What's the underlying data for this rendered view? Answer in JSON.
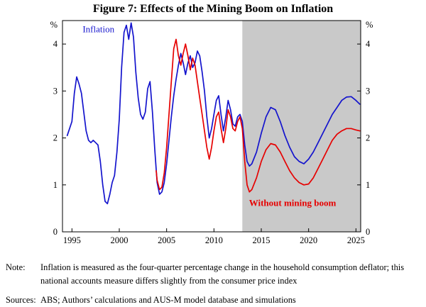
{
  "title": "Figure 7: Effects of the Mining Boom on Inflation",
  "notes": [
    {
      "label": "Note:",
      "text": "Inflation is measured as the four-quarter percentage change in the household consumption deflator; this national accounts measure differs slightly from the consumer price index"
    },
    {
      "label": "Sources:",
      "text": "ABS; Authors’ calculations and AUS-M model database and simulations"
    }
  ],
  "chart_data": {
    "type": "line",
    "title": "Figure 7: Effects of the Mining Boom on Inflation",
    "unit_label": "%",
    "xlabel": "",
    "ylabel": "%",
    "xlim": [
      1994,
      2025.5
    ],
    "ylim": [
      0,
      4.5
    ],
    "xticks": [
      1995,
      2000,
      2005,
      2010,
      2015,
      2020,
      2025
    ],
    "yticks": [
      0,
      1,
      2,
      3,
      4
    ],
    "grid": false,
    "legend_position": "in-plot-labels",
    "shaded_region": {
      "from": 2013,
      "to": 2025.5,
      "color": "#c9c9c9",
      "meaning": "simulation period"
    },
    "series": [
      {
        "name": "Inflation",
        "color": "#1414cd",
        "points": [
          [
            1994.5,
            2.05
          ],
          [
            1994.75,
            2.2
          ],
          [
            1995,
            2.35
          ],
          [
            1995.25,
            2.95
          ],
          [
            1995.5,
            3.3
          ],
          [
            1995.75,
            3.15
          ],
          [
            1996,
            2.95
          ],
          [
            1996.25,
            2.55
          ],
          [
            1996.5,
            2.15
          ],
          [
            1996.75,
            1.95
          ],
          [
            1997,
            1.9
          ],
          [
            1997.25,
            1.95
          ],
          [
            1997.5,
            1.9
          ],
          [
            1997.75,
            1.85
          ],
          [
            1998,
            1.5
          ],
          [
            1998.25,
            1.0
          ],
          [
            1998.5,
            0.65
          ],
          [
            1998.75,
            0.6
          ],
          [
            1999,
            0.8
          ],
          [
            1999.25,
            1.05
          ],
          [
            1999.5,
            1.2
          ],
          [
            1999.75,
            1.7
          ],
          [
            2000,
            2.4
          ],
          [
            2000.25,
            3.5
          ],
          [
            2000.5,
            4.25
          ],
          [
            2000.75,
            4.4
          ],
          [
            2001,
            4.1
          ],
          [
            2001.25,
            4.45
          ],
          [
            2001.5,
            4.15
          ],
          [
            2001.75,
            3.4
          ],
          [
            2002,
            2.85
          ],
          [
            2002.25,
            2.5
          ],
          [
            2002.5,
            2.4
          ],
          [
            2002.75,
            2.55
          ],
          [
            2003,
            3.05
          ],
          [
            2003.25,
            3.2
          ],
          [
            2003.5,
            2.55
          ],
          [
            2003.75,
            1.75
          ],
          [
            2004,
            1.05
          ],
          [
            2004.25,
            0.8
          ],
          [
            2004.5,
            0.85
          ],
          [
            2004.75,
            1.05
          ],
          [
            2005,
            1.45
          ],
          [
            2005.25,
            1.95
          ],
          [
            2005.5,
            2.45
          ],
          [
            2005.75,
            2.9
          ],
          [
            2006,
            3.25
          ],
          [
            2006.25,
            3.55
          ],
          [
            2006.5,
            3.8
          ],
          [
            2006.75,
            3.6
          ],
          [
            2007,
            3.35
          ],
          [
            2007.25,
            3.6
          ],
          [
            2007.5,
            3.75
          ],
          [
            2007.75,
            3.5
          ],
          [
            2008,
            3.6
          ],
          [
            2008.25,
            3.85
          ],
          [
            2008.5,
            3.75
          ],
          [
            2008.75,
            3.4
          ],
          [
            2009,
            3.0
          ],
          [
            2009.25,
            2.45
          ],
          [
            2009.5,
            2.0
          ],
          [
            2009.75,
            2.2
          ],
          [
            2010,
            2.5
          ],
          [
            2010.25,
            2.8
          ],
          [
            2010.5,
            2.9
          ],
          [
            2010.75,
            2.5
          ],
          [
            2011,
            2.15
          ],
          [
            2011.25,
            2.45
          ],
          [
            2011.5,
            2.8
          ],
          [
            2011.75,
            2.6
          ],
          [
            2012,
            2.3
          ],
          [
            2012.25,
            2.25
          ],
          [
            2012.5,
            2.45
          ],
          [
            2012.75,
            2.5
          ],
          [
            2013,
            2.35
          ],
          [
            2013.25,
            1.85
          ],
          [
            2013.5,
            1.5
          ],
          [
            2013.75,
            1.4
          ],
          [
            2014,
            1.45
          ],
          [
            2014.5,
            1.7
          ],
          [
            2015,
            2.1
          ],
          [
            2015.5,
            2.45
          ],
          [
            2016,
            2.65
          ],
          [
            2016.5,
            2.6
          ],
          [
            2017,
            2.35
          ],
          [
            2017.5,
            2.05
          ],
          [
            2018,
            1.8
          ],
          [
            2018.5,
            1.6
          ],
          [
            2019,
            1.5
          ],
          [
            2019.5,
            1.45
          ],
          [
            2020,
            1.55
          ],
          [
            2020.5,
            1.7
          ],
          [
            2021,
            1.9
          ],
          [
            2021.5,
            2.1
          ],
          [
            2022,
            2.3
          ],
          [
            2022.5,
            2.5
          ],
          [
            2023,
            2.65
          ],
          [
            2023.5,
            2.8
          ],
          [
            2024,
            2.87
          ],
          [
            2024.5,
            2.88
          ],
          [
            2025,
            2.8
          ],
          [
            2025.4,
            2.72
          ]
        ]
      },
      {
        "name": "Without mining boom",
        "color": "#e60000",
        "points": [
          [
            2003.9,
            1.3
          ],
          [
            2004,
            1.1
          ],
          [
            2004.25,
            0.9
          ],
          [
            2004.5,
            0.95
          ],
          [
            2004.75,
            1.25
          ],
          [
            2005,
            1.8
          ],
          [
            2005.25,
            2.5
          ],
          [
            2005.5,
            3.2
          ],
          [
            2005.75,
            3.9
          ],
          [
            2006,
            4.1
          ],
          [
            2006.25,
            3.75
          ],
          [
            2006.5,
            3.55
          ],
          [
            2006.75,
            3.8
          ],
          [
            2007,
            4.0
          ],
          [
            2007.25,
            3.75
          ],
          [
            2007.5,
            3.45
          ],
          [
            2007.75,
            3.7
          ],
          [
            2008,
            3.55
          ],
          [
            2008.25,
            3.2
          ],
          [
            2008.5,
            2.85
          ],
          [
            2008.75,
            2.5
          ],
          [
            2009,
            2.15
          ],
          [
            2009.25,
            1.8
          ],
          [
            2009.5,
            1.55
          ],
          [
            2009.75,
            1.8
          ],
          [
            2010,
            2.15
          ],
          [
            2010.25,
            2.45
          ],
          [
            2010.5,
            2.55
          ],
          [
            2010.75,
            2.2
          ],
          [
            2011,
            1.9
          ],
          [
            2011.25,
            2.2
          ],
          [
            2011.5,
            2.6
          ],
          [
            2011.75,
            2.45
          ],
          [
            2012,
            2.2
          ],
          [
            2012.25,
            2.15
          ],
          [
            2012.5,
            2.35
          ],
          [
            2012.75,
            2.45
          ],
          [
            2013,
            2.2
          ],
          [
            2013.25,
            1.5
          ],
          [
            2013.5,
            1.0
          ],
          [
            2013.75,
            0.85
          ],
          [
            2014,
            0.9
          ],
          [
            2014.5,
            1.15
          ],
          [
            2015,
            1.5
          ],
          [
            2015.5,
            1.75
          ],
          [
            2016,
            1.88
          ],
          [
            2016.5,
            1.85
          ],
          [
            2017,
            1.7
          ],
          [
            2017.5,
            1.5
          ],
          [
            2018,
            1.3
          ],
          [
            2018.5,
            1.15
          ],
          [
            2019,
            1.05
          ],
          [
            2019.5,
            1.0
          ],
          [
            2020,
            1.02
          ],
          [
            2020.5,
            1.15
          ],
          [
            2021,
            1.35
          ],
          [
            2021.5,
            1.55
          ],
          [
            2022,
            1.75
          ],
          [
            2022.5,
            1.95
          ],
          [
            2023,
            2.08
          ],
          [
            2023.5,
            2.15
          ],
          [
            2024,
            2.2
          ],
          [
            2024.5,
            2.2
          ],
          [
            2025,
            2.17
          ],
          [
            2025.4,
            2.15
          ]
        ]
      }
    ],
    "annotations": [
      {
        "text": "Inflation",
        "x": 1997.8,
        "y": 4.25,
        "color": "#1414cd",
        "bold": false
      },
      {
        "text": "Without mining boom",
        "x": 2018.3,
        "y": 0.55,
        "color": "#e60000",
        "bold": true
      }
    ]
  }
}
